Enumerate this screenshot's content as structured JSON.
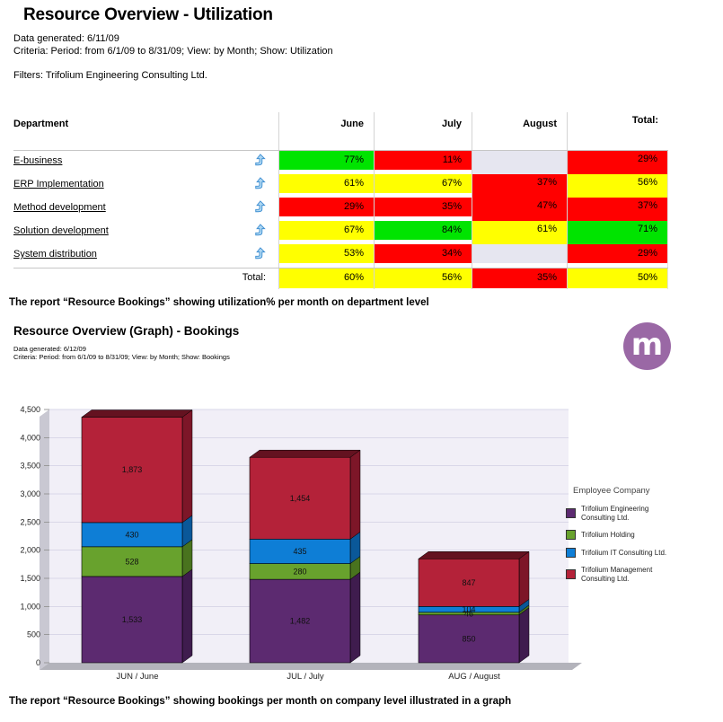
{
  "page": {
    "title": "Resource Overview - Utilization",
    "meta_line1": "Data generated: 6/11/09",
    "meta_line2": "Criteria: Period: from 6/1/09 to 8/31/09; View: by Month; Show: Utilization",
    "filters": "Filters: Trifolium Engineering Consulting Ltd.",
    "caption_table": "The report “Resource Bookings” showing utilization% per month on department level",
    "caption_chart": "The report “Resource Bookings” showing bookings per month on company level illustrated in a graph",
    "section2": {
      "title": "Resource Overview (Graph) - Bookings",
      "meta_line1": "Data generated: 6/12/09",
      "meta_line2": "Criteria: Period: from 6/1/09 to 8/31/09; View: by Month; Show: Bookings",
      "logo_letter": "m",
      "logo_color": "#9a68a5"
    }
  },
  "table": {
    "columns": [
      "Department",
      "June",
      "July",
      "August",
      "Total:"
    ],
    "palette": {
      "green": "#00e400",
      "yellow": "#ffff00",
      "red": "#ff0000",
      "empty": "#e6e6f0"
    },
    "rows": [
      {
        "department": "E-business",
        "cells": [
          {
            "value": "77%",
            "color": "green"
          },
          {
            "value": "11%",
            "color": "red"
          },
          {
            "value": "",
            "color": "empty"
          },
          {
            "value": "29%",
            "color": "red"
          }
        ]
      },
      {
        "department": "ERP Implementation",
        "cells": [
          {
            "value": "61%",
            "color": "yellow"
          },
          {
            "value": "67%",
            "color": "yellow"
          },
          {
            "value": "37%",
            "color": "red"
          },
          {
            "value": "56%",
            "color": "yellow"
          }
        ]
      },
      {
        "department": "Method development",
        "cells": [
          {
            "value": "29%",
            "color": "red"
          },
          {
            "value": "35%",
            "color": "red"
          },
          {
            "value": "47%",
            "color": "red"
          },
          {
            "value": "37%",
            "color": "red"
          }
        ]
      },
      {
        "department": "Solution development",
        "cells": [
          {
            "value": "67%",
            "color": "yellow"
          },
          {
            "value": "84%",
            "color": "green"
          },
          {
            "value": "61%",
            "color": "yellow"
          },
          {
            "value": "71%",
            "color": "green"
          }
        ]
      },
      {
        "department": "System distribution",
        "cells": [
          {
            "value": "53%",
            "color": "yellow"
          },
          {
            "value": "34%",
            "color": "red"
          },
          {
            "value": "",
            "color": "empty"
          },
          {
            "value": "29%",
            "color": "red"
          }
        ]
      }
    ],
    "total_row": {
      "label": "Total:",
      "cells": [
        {
          "value": "60%",
          "color": "yellow"
        },
        {
          "value": "56%",
          "color": "yellow"
        },
        {
          "value": "35%",
          "color": "red"
        },
        {
          "value": "50%",
          "color": "yellow"
        }
      ]
    }
  },
  "chart_data": {
    "type": "bar",
    "stacked": true,
    "title": "",
    "legend_title": "Employee Company",
    "legend_position": "right",
    "grid": true,
    "ylim": [
      0,
      4500
    ],
    "ytick_step": 500,
    "categories": [
      "JUN / June",
      "JUL / July",
      "AUG / August"
    ],
    "series": [
      {
        "name": "Trifolium Engineering Consulting Ltd.",
        "color": "#5c2a70",
        "side_color": "#3f1c4e",
        "values": [
          1533,
          1482,
          850
        ]
      },
      {
        "name": "Trifolium Holding",
        "color": "#68a22d",
        "side_color": "#49731e",
        "values": [
          528,
          280,
          46
        ]
      },
      {
        "name": "Trifolium IT Consulting Ltd.",
        "color": "#0e7ed6",
        "side_color": "#0a5899",
        "values": [
          430,
          435,
          104
        ]
      },
      {
        "name": "Trifolium Management Consulting Ltd.",
        "color": "#b42239",
        "side_color": "#7d1628",
        "values": [
          1873,
          1454,
          847
        ]
      }
    ],
    "plot_bg": "#f1eff7",
    "grid_color": "#d9d7e8"
  }
}
